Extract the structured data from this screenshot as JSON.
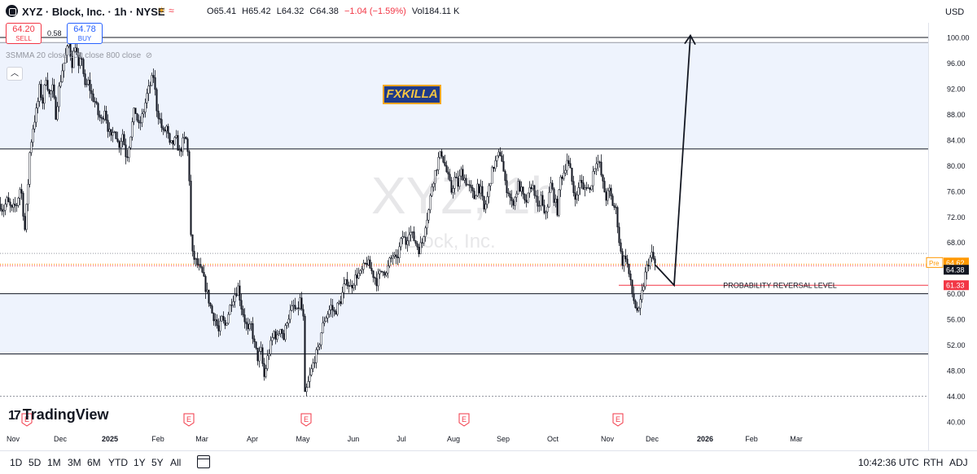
{
  "header": {
    "title": "XYZ · Block, Inc. · 1h · NYSE",
    "ohlc": {
      "o_label": "O",
      "o": "65.41",
      "h_label": "H",
      "h": "65.42",
      "l_label": "L",
      "l": "64.32",
      "c_label": "C",
      "c": "64.38",
      "change": "−1.04 (−1.59%)",
      "vol_label": "Vol",
      "vol": "184.11 K"
    },
    "currency": "USD"
  },
  "trade": {
    "sell_price": "64.20",
    "sell_label": "SELL",
    "spread": "0.58",
    "buy_price": "64.78",
    "buy_label": "BUY"
  },
  "indicator": {
    "label": "3SMMA 20 close 100 close 800 close"
  },
  "watermark": {
    "symbol": "XYZ, 1h",
    "name": "Block, Inc."
  },
  "annotation": {
    "badge": "FXKILLA",
    "level_label": "PROBABILITY REVERSAL LEVEL"
  },
  "brand": "TradingView",
  "bottombar": {
    "timeframes": [
      "1D",
      "5D",
      "1M",
      "3M",
      "6M",
      "YTD",
      "1Y",
      "5Y",
      "All"
    ],
    "clock": "10:42:36 UTC",
    "session": "RTH",
    "adj": "ADJ"
  },
  "colors": {
    "up": "#089981",
    "down": "#f23645",
    "zone": "#eef3fd",
    "pre": "#ff9800",
    "level": "#f23645"
  },
  "chart_data": {
    "type": "candlestick",
    "interval": "1h",
    "ylim": [
      40,
      102
    ],
    "yticks": [
      40,
      44,
      48,
      52,
      56,
      60,
      64,
      68,
      72,
      76,
      80,
      84,
      88,
      92,
      96,
      100
    ],
    "ytick_labels": [
      "40.00",
      "44.00",
      "48.00",
      "52.00",
      "56.00",
      "60.00",
      "64.00",
      "68.00",
      "72.00",
      "76.00",
      "80.00",
      "84.00",
      "88.00",
      "92.00",
      "96.00",
      "100.00"
    ],
    "x_labels": [
      "Nov",
      "Dec",
      "2025",
      "Feb",
      "Mar",
      "Apr",
      "May",
      "Jun",
      "Jul",
      "Aug",
      "Sep",
      "Oct",
      "Nov",
      "Dec",
      "2026",
      "Feb",
      "Mar"
    ],
    "earnings_markers": [
      "E",
      "E",
      "E",
      "E",
      "E"
    ],
    "price_path": [
      [
        0,
        74
      ],
      [
        3,
        73
      ],
      [
        8,
        74.5
      ],
      [
        14,
        73
      ],
      [
        20,
        74
      ],
      [
        25,
        77
      ],
      [
        30,
        70
      ],
      [
        33,
        75
      ],
      [
        36,
        82
      ],
      [
        40,
        86
      ],
      [
        45,
        89
      ],
      [
        48,
        92
      ],
      [
        52,
        90
      ],
      [
        56,
        94
      ],
      [
        60,
        91
      ],
      [
        64,
        92
      ],
      [
        68,
        88
      ],
      [
        72,
        92
      ],
      [
        76,
        95
      ],
      [
        80,
        97
      ],
      [
        84,
        99
      ],
      [
        88,
        96
      ],
      [
        92,
        99
      ],
      [
        96,
        95
      ],
      [
        100,
        97
      ],
      [
        104,
        92
      ],
      [
        108,
        93
      ],
      [
        112,
        91
      ],
      [
        116,
        90
      ],
      [
        120,
        88
      ],
      [
        124,
        87
      ],
      [
        128,
        89
      ],
      [
        132,
        86
      ],
      [
        136,
        84
      ],
      [
        140,
        86
      ],
      [
        145,
        83
      ],
      [
        150,
        85
      ],
      [
        155,
        81
      ],
      [
        160,
        85
      ],
      [
        165,
        89
      ],
      [
        170,
        86
      ],
      [
        175,
        88
      ],
      [
        180,
        91
      ],
      [
        185,
        93
      ],
      [
        188,
        94
      ],
      [
        192,
        89
      ],
      [
        196,
        87
      ],
      [
        200,
        85
      ],
      [
        204,
        86
      ],
      [
        208,
        83
      ],
      [
        212,
        83.5
      ],
      [
        216,
        84
      ],
      [
        220,
        82
      ],
      [
        225,
        84
      ],
      [
        229,
        84
      ],
      [
        233,
        76
      ],
      [
        234,
        69
      ],
      [
        236,
        66
      ],
      [
        240,
        65
      ],
      [
        244,
        64
      ],
      [
        248,
        63
      ],
      [
        252,
        61
      ],
      [
        256,
        59
      ],
      [
        260,
        57
      ],
      [
        264,
        56
      ],
      [
        268,
        54
      ],
      [
        272,
        56
      ],
      [
        276,
        55
      ],
      [
        280,
        57
      ],
      [
        284,
        59
      ],
      [
        288,
        60
      ],
      [
        292,
        61
      ],
      [
        296,
        58
      ],
      [
        300,
        56
      ],
      [
        304,
        54
      ],
      [
        308,
        55
      ],
      [
        312,
        52
      ],
      [
        316,
        50
      ],
      [
        320,
        51
      ],
      [
        324,
        47
      ],
      [
        328,
        50
      ],
      [
        332,
        52
      ],
      [
        336,
        54
      ],
      [
        340,
        53
      ],
      [
        344,
        55
      ],
      [
        348,
        53
      ],
      [
        352,
        56
      ],
      [
        356,
        57
      ],
      [
        360,
        58
      ],
      [
        364,
        57
      ],
      [
        368,
        59
      ],
      [
        372,
        56
      ],
      [
        374,
        44
      ],
      [
        378,
        46
      ],
      [
        382,
        48
      ],
      [
        386,
        50
      ],
      [
        390,
        51
      ],
      [
        394,
        54
      ],
      [
        398,
        56
      ],
      [
        402,
        57
      ],
      [
        406,
        58
      ],
      [
        410,
        57
      ],
      [
        414,
        58
      ],
      [
        418,
        59
      ],
      [
        422,
        61
      ],
      [
        426,
        62
      ],
      [
        430,
        61
      ],
      [
        434,
        62
      ],
      [
        438,
        63
      ],
      [
        442,
        63
      ],
      [
        446,
        64
      ],
      [
        450,
        65
      ],
      [
        454,
        64
      ],
      [
        458,
        63
      ],
      [
        462,
        62
      ],
      [
        466,
        63
      ],
      [
        470,
        64
      ],
      [
        474,
        63
      ],
      [
        478,
        65
      ],
      [
        482,
        66
      ],
      [
        486,
        65
      ],
      [
        490,
        67
      ],
      [
        494,
        69
      ],
      [
        498,
        68
      ],
      [
        502,
        70
      ],
      [
        506,
        69
      ],
      [
        510,
        68
      ],
      [
        514,
        67
      ],
      [
        518,
        68
      ],
      [
        522,
        71
      ],
      [
        526,
        73
      ],
      [
        530,
        77
      ],
      [
        534,
        79
      ],
      [
        538,
        81
      ],
      [
        542,
        82
      ],
      [
        546,
        80
      ],
      [
        550,
        78
      ],
      [
        554,
        76
      ],
      [
        558,
        78
      ],
      [
        562,
        77
      ],
      [
        566,
        79
      ],
      [
        570,
        78
      ],
      [
        574,
        77
      ],
      [
        578,
        76
      ],
      [
        582,
        75
      ],
      [
        586,
        77
      ],
      [
        590,
        76
      ],
      [
        594,
        73
      ],
      [
        598,
        75
      ],
      [
        602,
        78
      ],
      [
        606,
        80
      ],
      [
        610,
        81
      ],
      [
        614,
        82
      ],
      [
        616,
        81
      ],
      [
        620,
        77
      ],
      [
        624,
        76
      ],
      [
        628,
        74
      ],
      [
        632,
        75
      ],
      [
        636,
        77
      ],
      [
        640,
        76
      ],
      [
        644,
        74
      ],
      [
        648,
        75
      ],
      [
        652,
        77
      ],
      [
        656,
        76
      ],
      [
        660,
        73
      ],
      [
        664,
        75
      ],
      [
        668,
        72
      ],
      [
        672,
        74
      ],
      [
        676,
        77
      ],
      [
        680,
        75
      ],
      [
        684,
        73
      ],
      [
        688,
        78
      ],
      [
        692,
        79
      ],
      [
        696,
        81
      ],
      [
        700,
        79
      ],
      [
        704,
        76
      ],
      [
        708,
        75
      ],
      [
        712,
        78
      ],
      [
        716,
        76
      ],
      [
        720,
        77
      ],
      [
        724,
        76
      ],
      [
        728,
        79
      ],
      [
        732,
        81
      ],
      [
        736,
        80
      ],
      [
        740,
        77
      ],
      [
        744,
        75
      ],
      [
        748,
        76
      ],
      [
        752,
        74
      ],
      [
        756,
        73
      ],
      [
        758,
        71
      ],
      [
        761,
        67
      ],
      [
        764,
        65
      ],
      [
        768,
        66
      ],
      [
        772,
        63
      ],
      [
        776,
        60
      ],
      [
        780,
        58
      ],
      [
        784,
        57
      ],
      [
        788,
        60
      ],
      [
        792,
        63
      ],
      [
        796,
        65
      ],
      [
        800,
        66
      ],
      [
        804,
        64.6
      ]
    ],
    "levels": [
      {
        "value": 100.0
      },
      {
        "value": 99.2
      },
      {
        "value": 82.6
      },
      {
        "value": 66.3
      },
      {
        "value": 64.62
      },
      {
        "value": 61.33
      },
      {
        "value": 60.0
      },
      {
        "value": 50.6
      },
      {
        "value": 44.0
      }
    ],
    "zones": [
      {
        "from": 82.6,
        "to": 99.2
      },
      {
        "from": 50.6,
        "to": 60.0
      }
    ],
    "projection": [
      [
        804,
        64.6
      ],
      [
        828,
        61.33
      ],
      [
        848,
        100.3
      ]
    ],
    "price_labels": [
      {
        "text": "Pre",
        "value": "64.62",
        "kind": "pre"
      },
      {
        "value": "64.38",
        "kind": "last"
      },
      {
        "value": "61.33",
        "kind": "level"
      }
    ]
  }
}
